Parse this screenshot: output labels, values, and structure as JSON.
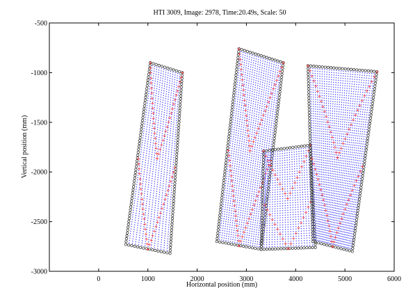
{
  "chart_data": {
    "type": "scatter",
    "title": "HTI 3009, Image: 2978, Time:20.49s, Scale: 50",
    "xlabel": "Horizontal position (mm)",
    "ylabel": "Vertical position (mm)",
    "xlim": [
      -1000,
      6000
    ],
    "ylim": [
      -3000,
      -500
    ],
    "xticks": [
      0,
      1000,
      2000,
      3000,
      4000,
      5000,
      6000
    ],
    "yticks": [
      -500,
      -1000,
      -1500,
      -2000,
      -2500,
      -3000
    ],
    "grid": false,
    "legend": "none",
    "colors": {
      "mesh": "#3333ff",
      "diagonal": "#ff2020",
      "boundary": "#333333"
    },
    "panels": [
      {
        "name": "left",
        "corners": {
          "tl": [
            1050,
            -900
          ],
          "tr": [
            1700,
            -1000
          ],
          "br": [
            1450,
            -2820
          ],
          "bl": [
            550,
            -2730
          ]
        }
      },
      {
        "name": "middle",
        "corners": {
          "tl": [
            2850,
            -760
          ],
          "tr": [
            3750,
            -900
          ],
          "br": [
            3300,
            -2780
          ],
          "bl": [
            2400,
            -2700
          ]
        }
      },
      {
        "name": "bottom-center",
        "corners": {
          "tl": [
            3350,
            -1790
          ],
          "tr": [
            4300,
            -1730
          ],
          "br": [
            4400,
            -2760
          ],
          "bl": [
            3300,
            -2780
          ]
        }
      },
      {
        "name": "right",
        "corners": {
          "tl": [
            4250,
            -930
          ],
          "tr": [
            5650,
            -990
          ],
          "br": [
            5150,
            -2800
          ],
          "bl": [
            4350,
            -2700
          ]
        }
      }
    ]
  }
}
